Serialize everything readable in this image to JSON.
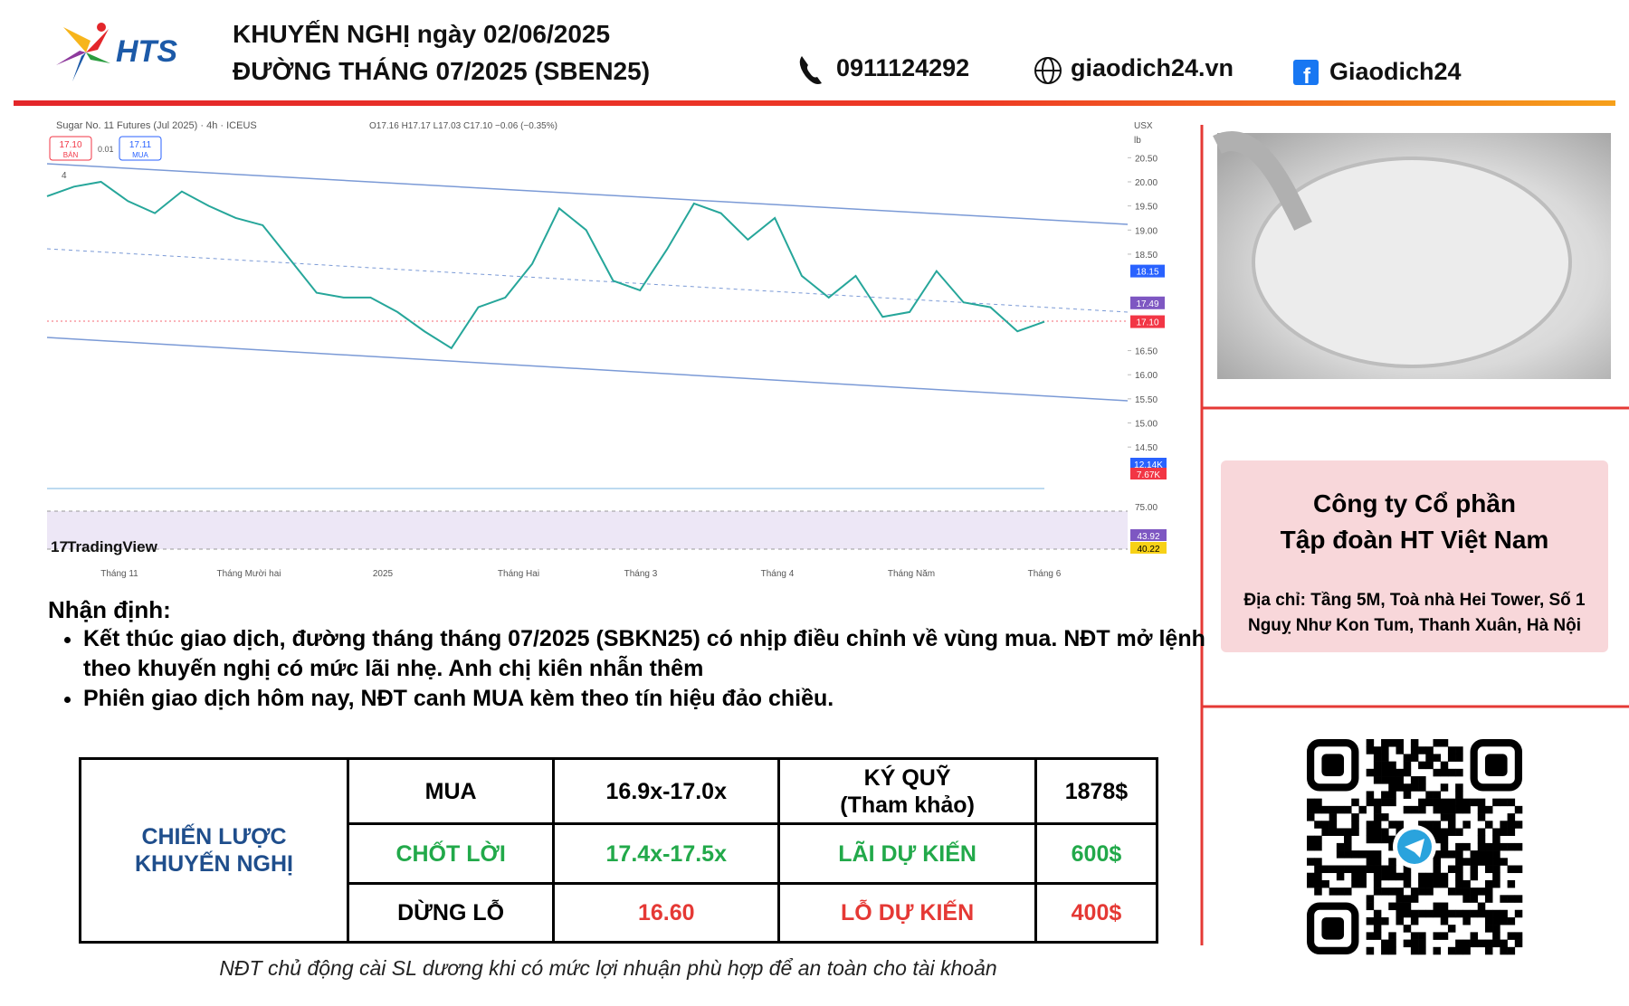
{
  "header": {
    "logo_text": "HTS",
    "title_line1": "KHUYẾN NGHỊ ngày 02/06/2025",
    "title_line2": "ĐƯỜNG THÁNG 07/2025 (SBEN25)",
    "phone": "0911124292",
    "website": "giaodich24.vn",
    "facebook": "Giaodich24"
  },
  "price_chart": {
    "type": "line",
    "title": "Sugar No. 11 Futures (Jul 2025) · 4h · ICEUS",
    "ohlc": "O17.16 H17.17 L17.03 C17.10 −0.06 (−0.35%)",
    "sell_box": [
      "17.10",
      "BÁN"
    ],
    "spread": "0.01",
    "buy_box": [
      "17.11",
      "MUA"
    ],
    "unit_labels": [
      "USX",
      "lb"
    ],
    "indicator_count": "4",
    "brand": "TradingView",
    "x_labels": [
      "Tháng 11",
      "Tháng Mười hai",
      "2025",
      "Tháng Hai",
      "Tháng 3",
      "Tháng 4",
      "Tháng Năm",
      "Tháng 6"
    ],
    "values": [
      19.7,
      19.9,
      20.0,
      19.6,
      19.35,
      19.8,
      19.5,
      19.25,
      19.1,
      18.4,
      17.7,
      17.6,
      17.6,
      17.3,
      16.9,
      16.55,
      17.4,
      17.6,
      18.3,
      19.45,
      19.0,
      17.95,
      17.75,
      18.6,
      19.55,
      19.35,
      18.8,
      19.25,
      18.05,
      17.6,
      18.05,
      17.2,
      17.3,
      18.15,
      17.5,
      17.4,
      16.9,
      17.1
    ],
    "color": "#26a69a",
    "ylim": [
      14.25,
      20.75
    ],
    "yticks": [
      {
        "value": 14.5,
        "label": "14.50"
      },
      {
        "value": 15,
        "label": "15.00"
      },
      {
        "value": 15.5,
        "label": "15.50"
      },
      {
        "value": 16,
        "label": "16.00"
      },
      {
        "value": 16.5,
        "label": "16.50"
      },
      {
        "value": 18.5,
        "label": "18.50"
      },
      {
        "value": 19,
        "label": "19.00"
      },
      {
        "value": 19.5,
        "label": "19.50"
      },
      {
        "value": 20,
        "label": "20.00"
      },
      {
        "value": 20.5,
        "label": "20.50"
      }
    ],
    "price_tags": [
      {
        "value": 18.15,
        "label": "18.15",
        "color": "#2962ff"
      },
      {
        "value": 17.49,
        "label": "17.49",
        "color": "#7e57c2"
      },
      {
        "value": 17.1,
        "label": "17.10",
        "color": "#f23645"
      }
    ],
    "indicator_tags": [
      {
        "label": "12.14K",
        "color": "#2962ff"
      },
      {
        "label": "7.67K",
        "color": "#f23645"
      },
      {
        "label": "43.92",
        "color": "#7e57c2"
      },
      {
        "label": "40.22",
        "color": "#f7d117"
      }
    ],
    "rsi_label": "75.00"
  },
  "analysis": {
    "heading": "Nhận định:",
    "bullets": [
      "Kết thúc giao dịch, đường tháng tháng 07/2025 (SBKN25) có nhịp điều chỉnh về vùng mua. NĐT mở lệnh theo khuyến nghị có mức lãi nhẹ. Anh chị kiên nhẫn thêm",
      "Phiên giao dịch hôm nay, NĐT canh MUA kèm theo tín hiệu đảo chiều."
    ]
  },
  "table": {
    "label": "CHIẾN LƯỢC KHUYẾN NGHỊ",
    "rows": [
      [
        "MUA",
        "16.9x-17.0x",
        "KÝ QUỸ\n(Tham khảo)",
        "1878$"
      ],
      [
        "CHỐT LỜI",
        "17.4x-17.5x",
        "LÃI DỰ KIẾN",
        "600$"
      ],
      [
        "DỪNG LỖ",
        "16.60",
        "LỖ DỰ KIẾN",
        "400$"
      ]
    ]
  },
  "note": "NĐT chủ động cài SL dương khi có mức lợi nhuận phù hợp để an toàn cho tài khoản",
  "company": {
    "name_line1": "Công ty Cổ phần",
    "name_line2": "Tập đoàn HT Việt Nam",
    "address_line1": "Địa chỉ: Tầng 5M, Toà nhà Hei Tower, Số 1",
    "address_line2": "Nguỵ Như Kon Tum, Thanh Xuân, Hà Nội"
  }
}
